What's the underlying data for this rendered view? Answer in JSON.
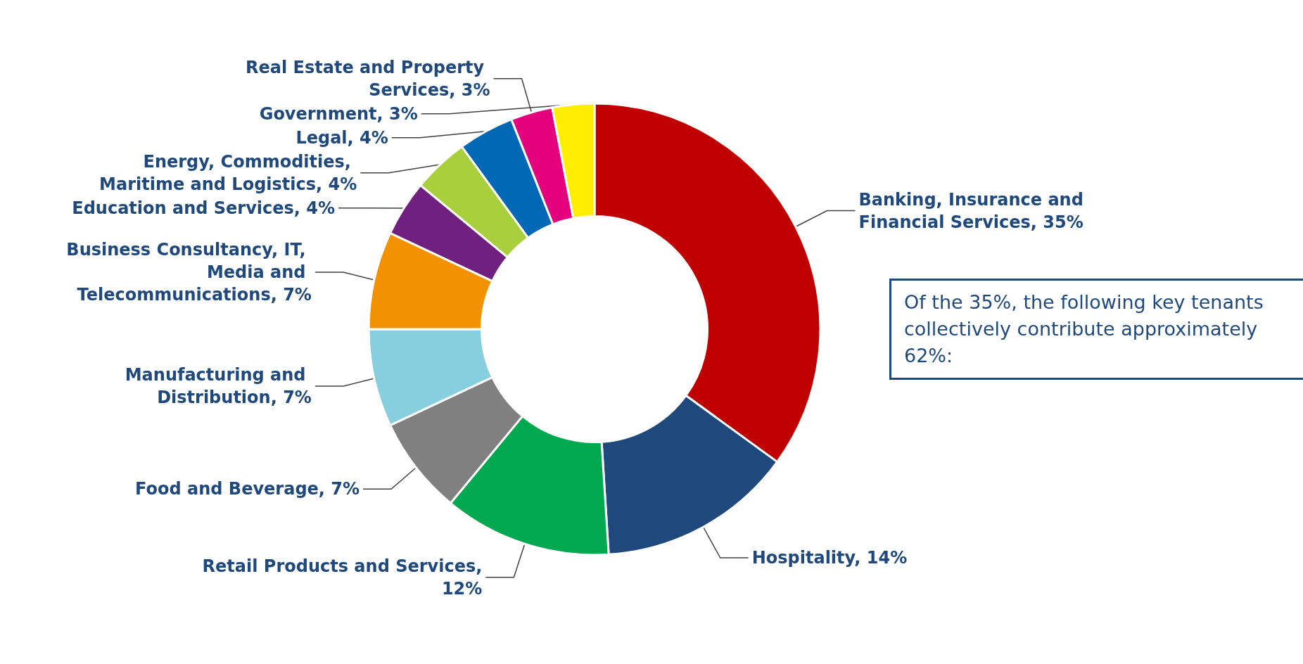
{
  "chart_data": {
    "type": "donut",
    "categories": [
      "Banking, Insurance and Financial Services, 35%",
      "Hospitality, 14%",
      "Retail Products and Services, 12%",
      "Food and Beverage, 7%",
      "Manufacturing and Distribution, 7%",
      "Business Consultancy, IT, Media and Telecommunications, 7%",
      "Education and Services, 4%",
      "Energy, Commodities, Maritime and Logistics, 4%",
      "Legal, 4%",
      "Real Estate and Property Services, 3%",
      "Government, 3%"
    ],
    "values": [
      35,
      14,
      12,
      7,
      7,
      7,
      4,
      4,
      4,
      3,
      3
    ],
    "colors": [
      "#c00000",
      "#1f497d",
      "#00a84f",
      "#808080",
      "#87cedf",
      "#f39200",
      "#70207e",
      "#a9d03c",
      "#0068b4",
      "#e5007e",
      "#ffee00"
    ],
    "legend": false,
    "annotations": [
      "Of the 35%, the following key tenants collectively contribute approximately 62%:"
    ]
  }
}
